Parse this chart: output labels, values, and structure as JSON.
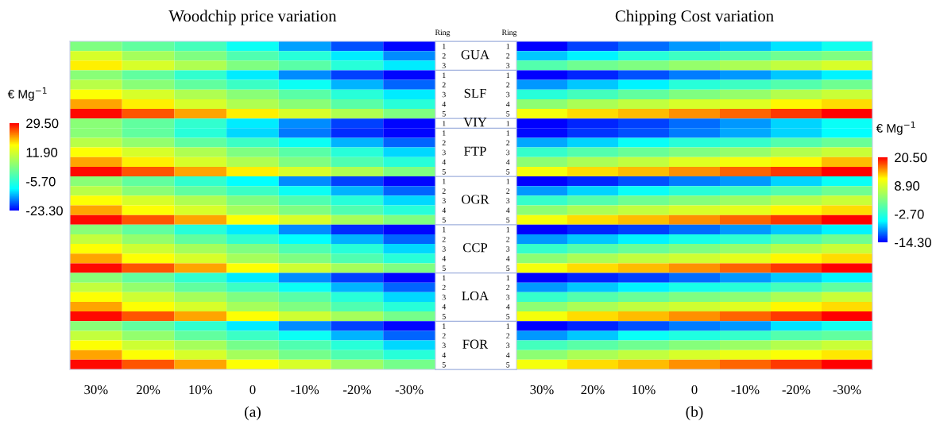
{
  "chart_data": [
    {
      "type": "heatmap",
      "title": "Woodchip price variation",
      "clabel": "€ Mg$^{−1}$",
      "clim": [
        -23.3,
        29.5
      ],
      "cticks": [
        {
          "value": -23.3,
          "label": "-23.30"
        },
        {
          "value": -5.7,
          "label": "-5.70"
        },
        {
          "value": 11.9,
          "label": "11.90"
        },
        {
          "value": 29.5,
          "label": "29.50"
        }
      ],
      "colors": [
        "#0000ff",
        "#00ffff",
        "#80ff80",
        "#ffff00",
        "#ff0000"
      ],
      "categories": [
        "30%",
        "20%",
        "10%",
        "0",
        "-10%",
        "-20%",
        "-30%"
      ],
      "y_categories": [
        "1",
        "2",
        "3",
        "1",
        "2",
        "3",
        "4",
        "5",
        "1",
        "1",
        "2",
        "3",
        "4",
        "5",
        "1",
        "2",
        "3",
        "4",
        "5",
        "1",
        "2",
        "3",
        "4",
        "5",
        "1",
        "2",
        "3",
        "4",
        "5",
        "1",
        "2",
        "3",
        "4",
        "5"
      ],
      "annotations": [
        "Ring",
        "GUA",
        "SLF",
        "VIY",
        "FTP",
        "OGR",
        "CCP",
        "LOA",
        "FOR",
        "(a)"
      ],
      "cells": [
        [
          3,
          0,
          -3,
          -9,
          -15,
          -19,
          -23
        ],
        [
          12,
          7,
          3,
          -2,
          -6,
          -11,
          -16
        ],
        [
          17,
          12,
          8,
          3,
          -1,
          -6,
          -11
        ],
        [
          4,
          0,
          -5,
          -11,
          -16,
          -20,
          -23
        ],
        [
          9,
          4,
          0,
          -4,
          -9,
          -14,
          -18
        ],
        [
          16,
          12,
          8,
          4,
          -1,
          -6,
          -11
        ],
        [
          21,
          17,
          12,
          8,
          4,
          -1,
          -6
        ],
        [
          29,
          25,
          21,
          17,
          12,
          8,
          3
        ],
        [
          4,
          0,
          -5,
          -11,
          -16,
          -20,
          -23
        ],
        [
          4,
          0,
          -6,
          -12,
          -17,
          -21,
          -23
        ],
        [
          9,
          5,
          0,
          -4,
          -9,
          -14,
          -18
        ],
        [
          16,
          12,
          8,
          3,
          -1,
          -6,
          -12
        ],
        [
          21,
          17,
          12,
          8,
          3,
          -2,
          -6
        ],
        [
          29,
          25,
          21,
          17,
          12,
          8,
          3
        ],
        [
          4,
          0,
          -5,
          -10,
          -16,
          -20,
          -23
        ],
        [
          9,
          4,
          0,
          -4,
          -9,
          -14,
          -18
        ],
        [
          16,
          12,
          8,
          3,
          -2,
          -6,
          -12
        ],
        [
          21,
          16,
          12,
          7,
          3,
          -2,
          -6
        ],
        [
          29,
          25,
          21,
          16,
          12,
          7,
          3
        ],
        [
          4,
          0,
          -6,
          -11,
          -16,
          -21,
          -23
        ],
        [
          10,
          5,
          0,
          -5,
          -10,
          -14,
          -18
        ],
        [
          16,
          11,
          7,
          3,
          -2,
          -6,
          -12
        ],
        [
          21,
          16,
          12,
          7,
          3,
          -2,
          -6
        ],
        [
          29,
          25,
          21,
          16,
          11,
          7,
          3
        ],
        [
          4,
          0,
          -5,
          -11,
          -16,
          -20,
          -23
        ],
        [
          10,
          5,
          0,
          -4,
          -9,
          -14,
          -18
        ],
        [
          16,
          11,
          7,
          3,
          -1,
          -6,
          -12
        ],
        [
          21,
          16,
          12,
          7,
          3,
          -2,
          -6
        ],
        [
          29,
          25,
          21,
          16,
          11,
          7,
          2
        ],
        [
          4,
          0,
          -5,
          -11,
          -16,
          -20,
          -23
        ],
        [
          10,
          5,
          0,
          -4,
          -9,
          -14,
          -18
        ],
        [
          16,
          11,
          7,
          2,
          -2,
          -6,
          -12
        ],
        [
          21,
          16,
          12,
          7,
          2,
          -2,
          -6
        ],
        [
          29,
          25,
          21,
          16,
          12,
          6,
          2
        ]
      ]
    },
    {
      "type": "heatmap",
      "title": "Chipping Cost variation",
      "clabel": "€ Mg$^{−1}$",
      "clim": [
        -14.3,
        20.5
      ],
      "cticks": [
        {
          "value": -14.3,
          "label": "-14.30"
        },
        {
          "value": -2.7,
          "label": "-2.70"
        },
        {
          "value": 8.9,
          "label": "8.90"
        },
        {
          "value": 20.5,
          "label": "20.50"
        }
      ],
      "colors": [
        "#0000ff",
        "#00ffff",
        "#80ff80",
        "#ffff00",
        "#ff0000"
      ],
      "categories": [
        "30%",
        "20%",
        "10%",
        "0",
        "-10%",
        "-20%",
        "-30%"
      ],
      "y_categories": [
        "1",
        "2",
        "3",
        "1",
        "2",
        "3",
        "4",
        "5",
        "1",
        "1",
        "2",
        "3",
        "4",
        "5",
        "1",
        "2",
        "3",
        "4",
        "5",
        "1",
        "2",
        "3",
        "4",
        "5",
        "1",
        "2",
        "3",
        "4",
        "5",
        "1",
        "2",
        "3",
        "4",
        "5"
      ],
      "annotations": [
        "Ring",
        "(b)"
      ],
      "cells": [
        [
          -14.3,
          -12,
          -10.5,
          -9,
          -8,
          -6.5,
          -4.5
        ],
        [
          -7.5,
          -6,
          -3,
          -1.5,
          0.3,
          2,
          3
        ],
        [
          0,
          2,
          3,
          4.5,
          6,
          7.5,
          9
        ],
        [
          -14.3,
          -13,
          -11.5,
          -10,
          -9,
          -7.5,
          -6
        ],
        [
          -9,
          -7.5,
          -6,
          -3,
          -1.5,
          0,
          2
        ],
        [
          -3,
          -1,
          1,
          3,
          4.5,
          6.5,
          8
        ],
        [
          4,
          6,
          7.5,
          9,
          9.5,
          12,
          13
        ],
        [
          11,
          13,
          14,
          15.5,
          17,
          18.5,
          20.5
        ],
        [
          -14.3,
          -13,
          -12,
          -10.5,
          -9,
          -7,
          -5
        ],
        [
          -14,
          -12.5,
          -11.5,
          -10,
          -8.5,
          -7,
          -5.5
        ],
        [
          -8.5,
          -7,
          -5,
          -3,
          -2,
          0,
          1.5
        ],
        [
          -2,
          0,
          1.5,
          3,
          4.5,
          6.5,
          8
        ],
        [
          4,
          6,
          7.5,
          9.5,
          11,
          12,
          14
        ],
        [
          11,
          13,
          14,
          15.5,
          17,
          18.5,
          20.5
        ],
        [
          -14.3,
          -13,
          -11.5,
          -10,
          -9,
          -7,
          -5
        ],
        [
          -9,
          -7,
          -5,
          -3,
          -1.5,
          0,
          2
        ],
        [
          -2,
          0,
          2,
          3.5,
          5,
          6.5,
          8
        ],
        [
          4,
          6,
          7.5,
          9,
          10,
          12,
          13
        ],
        [
          11,
          13,
          14,
          15.5,
          17,
          18.5,
          20.5
        ],
        [
          -14.3,
          -13,
          -12,
          -10.5,
          -9,
          -7.5,
          -6
        ],
        [
          -9,
          -7.5,
          -6,
          -4,
          -2.5,
          0,
          2
        ],
        [
          -2,
          0,
          1.5,
          3,
          4.5,
          6.5,
          8
        ],
        [
          4,
          6,
          7.5,
          8.5,
          10,
          12,
          13
        ],
        [
          11,
          13,
          14,
          15.5,
          17,
          18.5,
          20.5
        ],
        [
          -14.3,
          -13,
          -12,
          -10.5,
          -9,
          -7.5,
          -6
        ],
        [
          -9,
          -7.5,
          -6,
          -4,
          -3,
          -1,
          1
        ],
        [
          -2,
          0,
          1.5,
          3,
          4,
          6,
          8
        ],
        [
          4,
          6,
          7.5,
          8.5,
          9.5,
          12,
          13
        ],
        [
          11,
          13,
          14,
          15.5,
          17,
          18.5,
          20.5
        ],
        [
          -14.3,
          -13,
          -11.5,
          -10,
          -9,
          -6.5,
          -4.5
        ],
        [
          -9,
          -7.5,
          -5,
          -3.5,
          -2,
          0,
          1
        ],
        [
          -1,
          0.5,
          2,
          3.5,
          5,
          6.5,
          8
        ],
        [
          4,
          6,
          7.5,
          9,
          10.5,
          11.5,
          12.5
        ],
        [
          11,
          13,
          14,
          15.5,
          17,
          18.5,
          20.5
        ]
      ]
    }
  ]
}
